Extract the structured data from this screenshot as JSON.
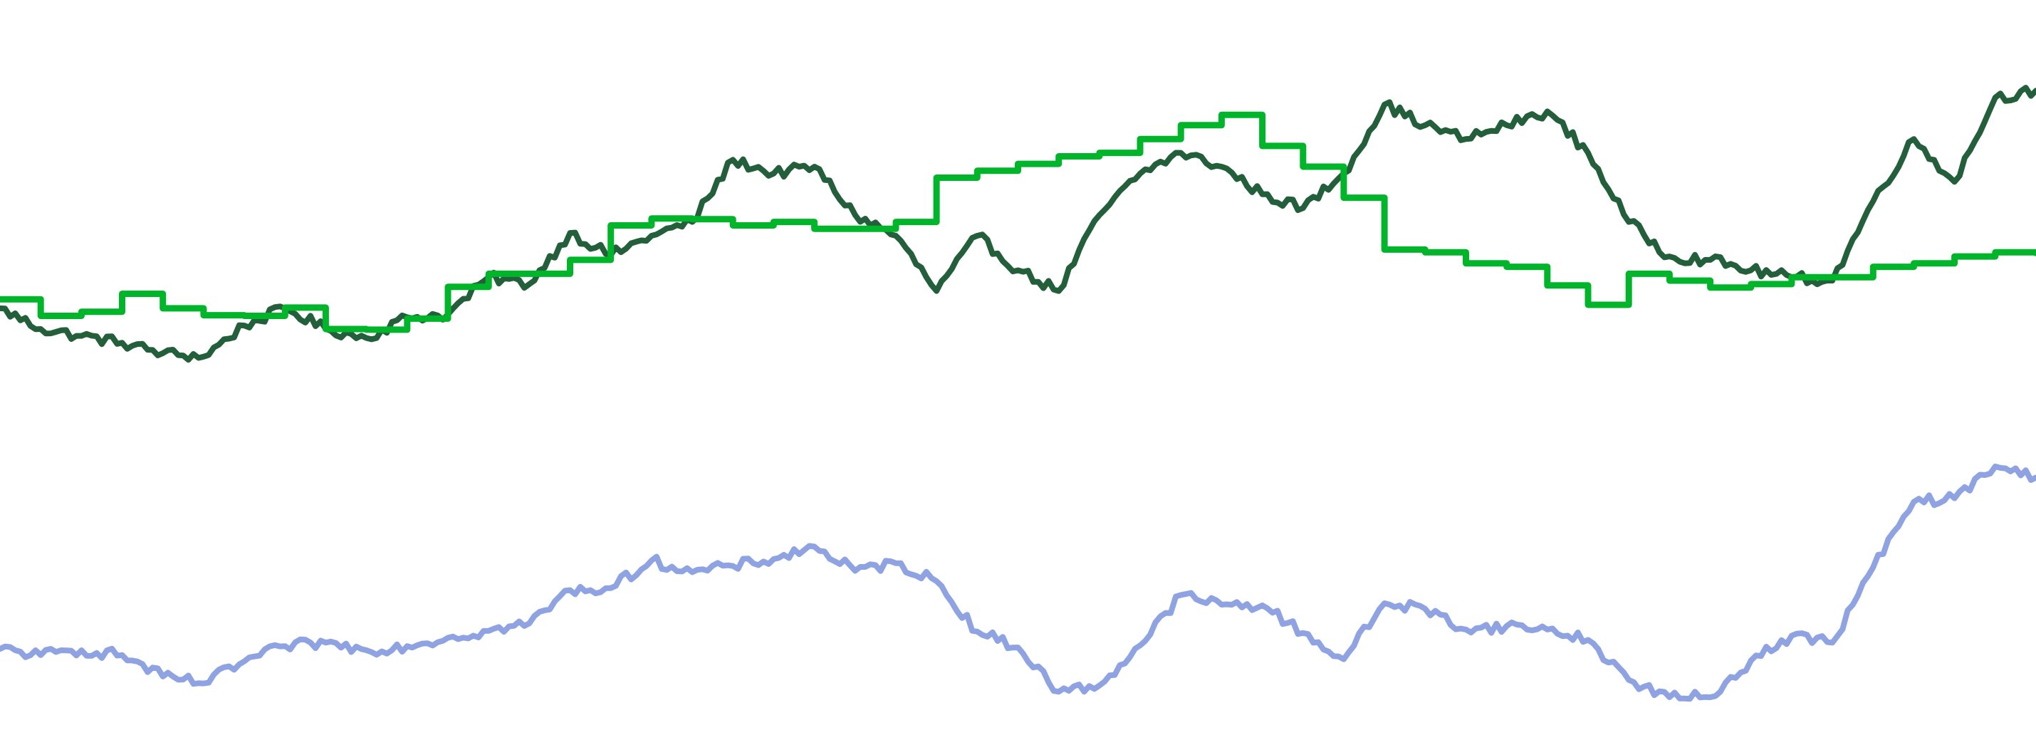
{
  "chart_data": {
    "type": "line",
    "title": "",
    "xlabel": "",
    "ylabel": "",
    "grid": false,
    "legend": "none",
    "x": [
      0,
      2,
      4,
      6,
      8,
      10,
      12,
      14,
      16,
      18,
      20,
      22,
      24,
      26,
      28,
      30,
      32,
      34,
      36,
      38,
      40,
      42,
      44,
      46,
      48,
      50,
      52,
      54,
      56,
      58,
      60,
      62,
      64,
      66,
      68,
      70,
      72,
      74,
      76,
      78,
      80,
      82,
      84,
      86,
      88,
      90,
      92,
      94,
      96,
      98,
      100
    ],
    "xlim": [
      0,
      100
    ],
    "ylim": [
      0,
      100
    ],
    "series": [
      {
        "color": "#225f3a",
        "interpolation": "linear",
        "values": [
          59.5,
          56.5,
          55.5,
          54.5,
          53,
          52.5,
          57,
          59.5,
          56.5,
          55.2,
          58.2,
          58.6,
          64,
          63,
          70.4,
          67.2,
          70,
          72,
          81,
          79,
          80,
          73,
          70,
          62,
          70,
          65,
          62,
          73,
          79,
          82,
          80,
          76,
          74,
          79,
          89,
          86,
          84,
          86,
          88,
          82,
          72,
          67,
          66.5,
          65,
          64,
          63.5,
          75,
          84,
          77.8,
          90,
          91
        ]
      },
      {
        "color": "#00b52a",
        "interpolation": "step",
        "values": [
          60.8,
          58.4,
          59,
          61.6,
          59.5,
          58.5,
          58.4,
          59.6,
          56.5,
          56.4,
          58,
          62.6,
          64.5,
          64.5,
          66.5,
          71.5,
          72.5,
          72.4,
          71.5,
          72,
          71,
          71,
          72,
          78.4,
          79.4,
          80.4,
          81.5,
          82,
          84,
          86,
          87.5,
          83,
          80,
          75.5,
          68,
          67.6,
          66,
          65.5,
          62.8,
          60,
          64.5,
          63.5,
          62.5,
          63,
          64,
          64,
          65.5,
          66,
          67,
          67.6,
          67.5
        ]
      },
      {
        "color": "#8fa3e3",
        "interpolation": "linear",
        "values": [
          10.2,
          9.3,
          10,
          9.3,
          6.2,
          5.2,
          8.4,
          10.6,
          11.1,
          10,
          10.6,
          11.8,
          12.8,
          13.9,
          18.7,
          19,
          23,
          21.3,
          22.2,
          23.2,
          25,
          21.5,
          22.6,
          20,
          12.7,
          10.4,
          4,
          4.9,
          10.7,
          18,
          16.6,
          16.5,
          12.5,
          8.7,
          16.8,
          16,
          13,
          13.5,
          13,
          11.5,
          5.7,
          3.2,
          3.2,
          8.5,
          12.1,
          11.1,
          22,
          31.5,
          32,
          36.6,
          35
        ]
      }
    ]
  }
}
